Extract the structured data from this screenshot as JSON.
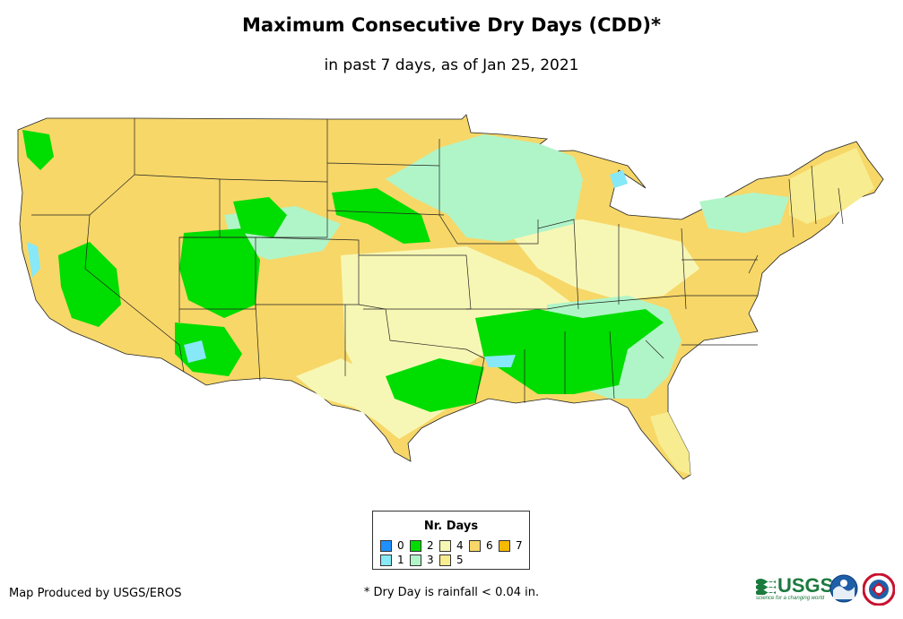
{
  "header": {
    "title": "Maximum Consecutive Dry Days (CDD)*",
    "subtitle": "in past 7 days, as of Jan 25, 2021"
  },
  "legend": {
    "title": "Nr. Days",
    "items": [
      {
        "label": "0",
        "color": "#1e90ff"
      },
      {
        "label": "1",
        "color": "#87e8f7"
      },
      {
        "label": "2",
        "color": "#00dd00"
      },
      {
        "label": "3",
        "color": "#b0f5c8"
      },
      {
        "label": "4",
        "color": "#f7f7b5"
      },
      {
        "label": "5",
        "color": "#f7ec8f"
      },
      {
        "label": "6",
        "color": "#f7d768"
      },
      {
        "label": "7",
        "color": "#f7b800"
      }
    ]
  },
  "footer": {
    "credit": "Map Produced by USGS/EROS",
    "footnote": "* Dry Day is rainfall < 0.04 in.",
    "usgs_logo": "USGS",
    "usgs_tagline": "science for a changing world"
  },
  "logos": [
    "usgs-logo",
    "noaa-logo",
    "nws-logo"
  ]
}
